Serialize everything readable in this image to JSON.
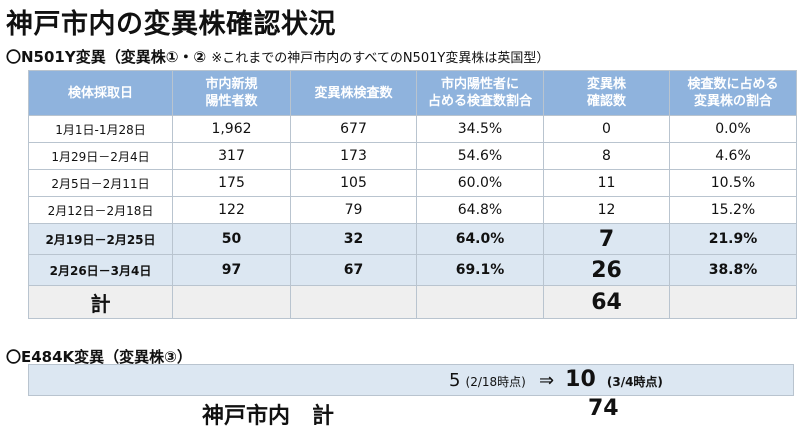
{
  "title": "神戸市内の変異株確認状況",
  "section1": {
    "heading": "〇N501Y変異（変異株①・②",
    "note": "※これまでの神戸市内のすべてのN501Y変異株は英国型）"
  },
  "table": {
    "headers": [
      [
        "検体採取日"
      ],
      [
        "市内新規",
        "陽性者数"
      ],
      [
        "変異株検査数"
      ],
      [
        "市内陽性者に",
        "占める検査数割合"
      ],
      [
        "変異株",
        "確認数"
      ],
      [
        "検査数に占める",
        "変異株の割合"
      ]
    ],
    "rows": [
      {
        "date": "1月1日-1月28日",
        "positives": "1,962",
        "tests": "677",
        "test_ratio": "34.5%",
        "variants": "0",
        "variant_ratio": "0.0%"
      },
      {
        "date": "1月29日－2月4日",
        "positives": "317",
        "tests": "173",
        "test_ratio": "54.6%",
        "variants": "8",
        "variant_ratio": "4.6%"
      },
      {
        "date": "2月5日－2月11日",
        "positives": "175",
        "tests": "105",
        "test_ratio": "60.0%",
        "variants": "11",
        "variant_ratio": "10.5%"
      },
      {
        "date": "2月12日－2月18日",
        "positives": "122",
        "tests": "79",
        "test_ratio": "64.8%",
        "variants": "12",
        "variant_ratio": "15.2%"
      },
      {
        "date": "2月19日－2月25日",
        "positives": "50",
        "tests": "32",
        "test_ratio": "64.0%",
        "variants": "7",
        "variant_ratio": "21.9%"
      },
      {
        "date": "2月26日－3月4日",
        "positives": "97",
        "tests": "67",
        "test_ratio": "69.1%",
        "variants": "26",
        "variant_ratio": "38.8%"
      }
    ],
    "total": {
      "label": "計",
      "variants": "64"
    }
  },
  "section2": {
    "heading": "〇E484K変異（変異株③）",
    "prev_value": "5",
    "prev_note": "(2/18時点)",
    "arrow": "⇒",
    "current_value": "10",
    "current_note": "(3/4時点)"
  },
  "grand_total": {
    "label": "神戸市内　計",
    "value": "74"
  }
}
